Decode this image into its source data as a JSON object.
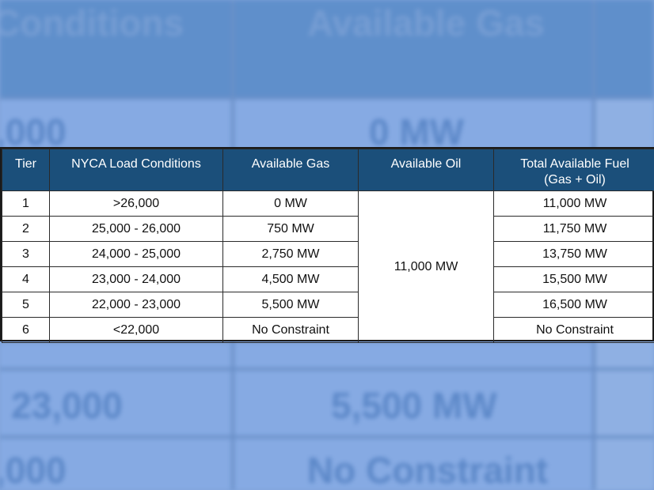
{
  "background": {
    "header_texts": [
      "Conditions",
      "Available Gas"
    ],
    "row_texts": [
      ",000",
      "0 MW",
      "- 23,000",
      "5,500 MW",
      ",000",
      "No Constraint"
    ]
  },
  "table": {
    "headers": [
      "Tier",
      "NYCA Load Conditions",
      "Available Gas",
      "Available Oil",
      "Total Available Fuel",
      "(Gas + Oil)"
    ],
    "oil_value": "11,000 MW",
    "rows": [
      {
        "tier": "1",
        "load": ">26,000",
        "gas": "0 MW",
        "total": "11,000 MW"
      },
      {
        "tier": "2",
        "load": "25,000 - 26,000",
        "gas": "750 MW",
        "total": "11,750 MW"
      },
      {
        "tier": "3",
        "load": "24,000 - 25,000",
        "gas": "2,750 MW",
        "total": "13,750 MW"
      },
      {
        "tier": "4",
        "load": "23,000 - 24,000",
        "gas": "4,500 MW",
        "total": "15,500 MW"
      },
      {
        "tier": "5",
        "load": "22,000 - 23,000",
        "gas": "5,500 MW",
        "total": "16,500 MW"
      },
      {
        "tier": "6",
        "load": "<22,000",
        "gas": "No Constraint",
        "total": "No Constraint"
      }
    ]
  },
  "colors": {
    "header_bg": "#1b4f7a",
    "background_blue": "#7fa3d9"
  }
}
